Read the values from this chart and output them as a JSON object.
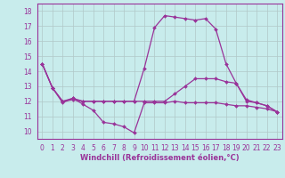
{
  "xlabel": "Windchill (Refroidissement éolien,°C)",
  "background_color": "#c8ecec",
  "line_color": "#993399",
  "grid_color": "#b0c8c8",
  "spine_color": "#993399",
  "xlim": [
    -0.5,
    23.5
  ],
  "ylim": [
    9.5,
    18.5
  ],
  "xticks": [
    0,
    1,
    2,
    3,
    4,
    5,
    6,
    7,
    8,
    9,
    10,
    11,
    12,
    13,
    14,
    15,
    16,
    17,
    18,
    19,
    20,
    21,
    22,
    23
  ],
  "yticks": [
    10,
    11,
    12,
    13,
    14,
    15,
    16,
    17,
    18
  ],
  "series": [
    [
      14.5,
      12.9,
      11.9,
      12.2,
      11.8,
      11.4,
      10.6,
      10.5,
      10.3,
      9.9,
      11.9,
      11.9,
      11.9,
      12.0,
      11.9,
      11.9,
      11.9,
      11.9,
      11.8,
      11.7,
      11.7,
      11.6,
      11.5,
      11.3
    ],
    [
      14.5,
      12.9,
      12.0,
      12.1,
      12.0,
      12.0,
      12.0,
      12.0,
      12.0,
      12.0,
      14.2,
      16.9,
      17.7,
      17.6,
      17.5,
      17.4,
      17.5,
      16.8,
      14.5,
      13.2,
      12.0,
      11.9,
      11.7,
      11.3
    ],
    [
      14.5,
      12.9,
      12.0,
      12.2,
      12.0,
      12.0,
      12.0,
      12.0,
      12.0,
      12.0,
      12.0,
      12.0,
      12.0,
      12.5,
      13.0,
      13.5,
      13.5,
      13.5,
      13.3,
      13.2,
      12.1,
      11.9,
      11.7,
      11.3
    ]
  ],
  "xlabel_fontsize": 6,
  "tick_fontsize": 5.5,
  "linewidth": 0.9,
  "markersize": 2.0
}
